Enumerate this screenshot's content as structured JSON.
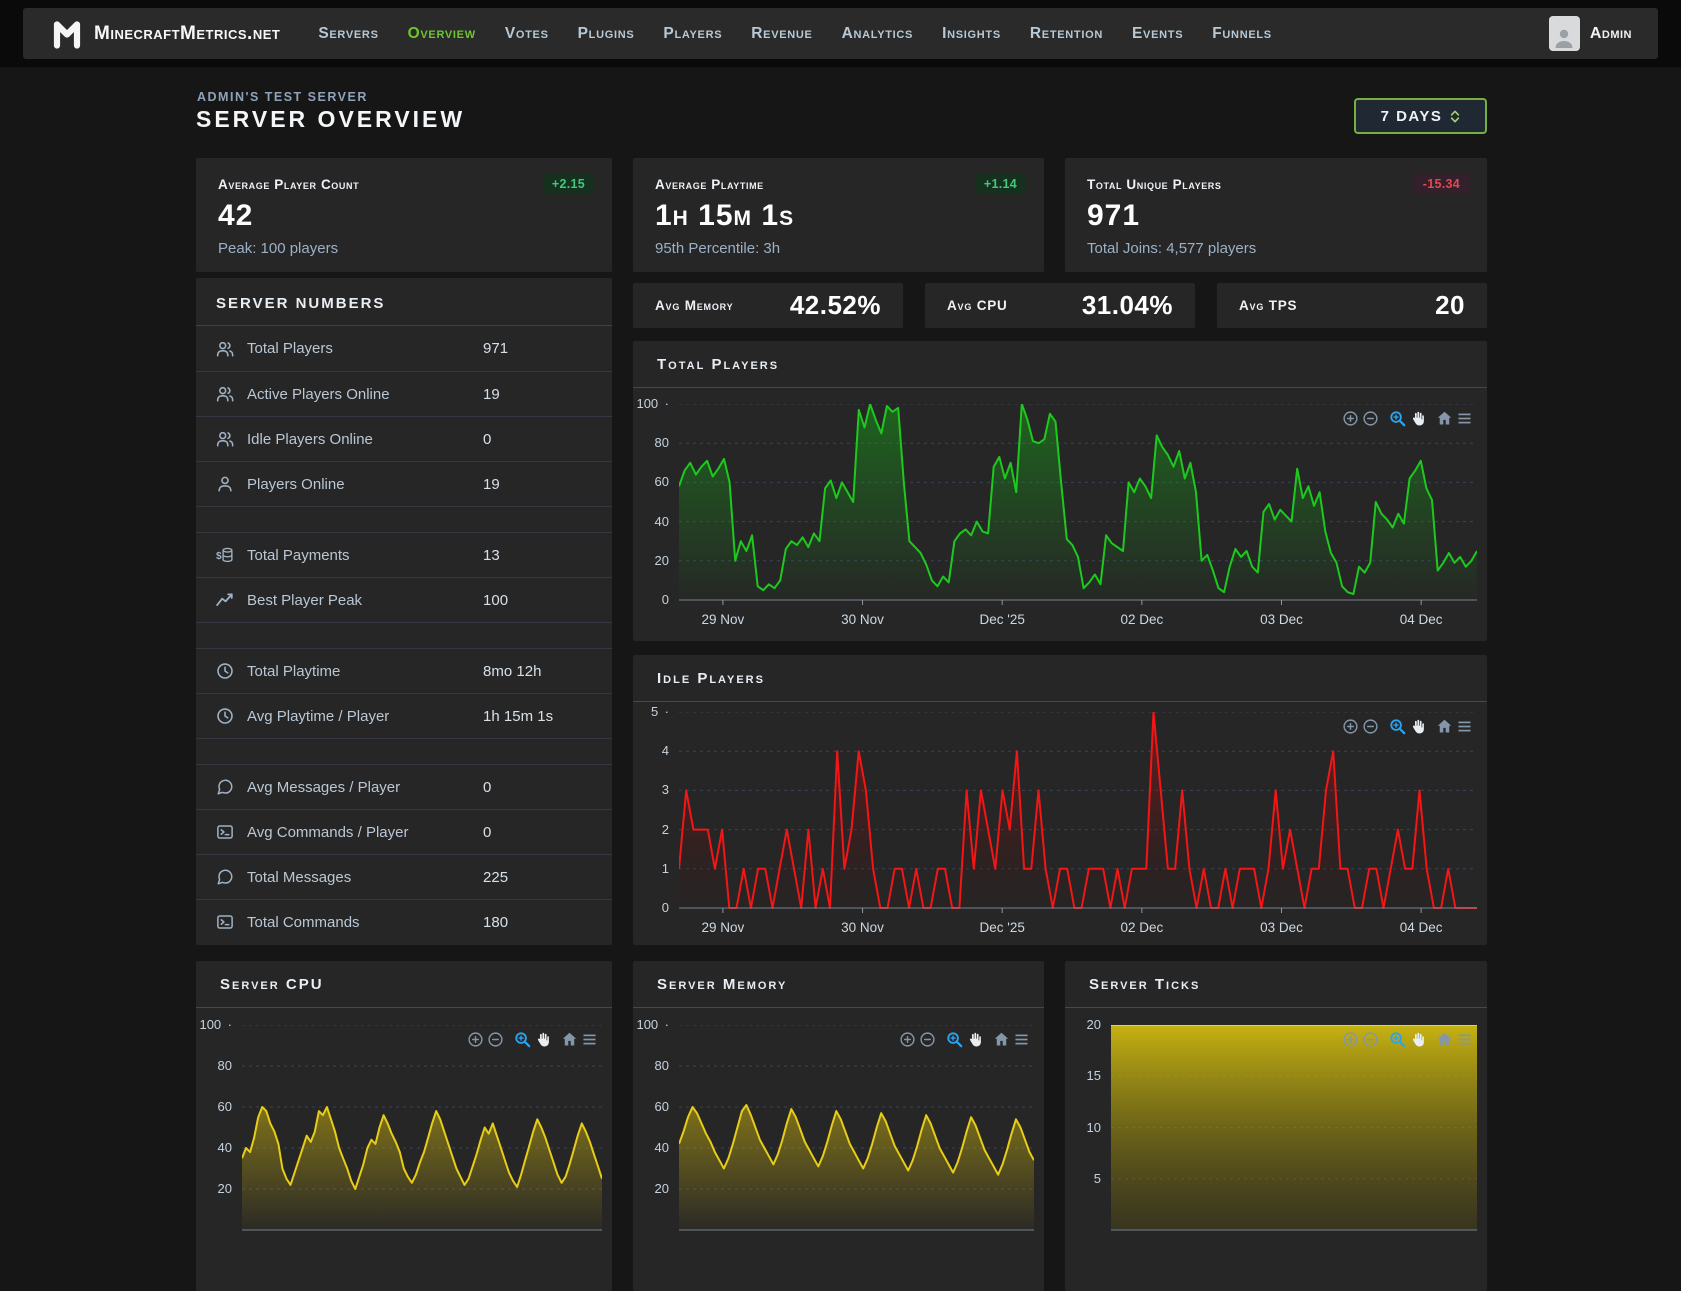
{
  "colors": {
    "positive": "#41c979",
    "negative": "#e5484d",
    "nav_active": "#6fc531",
    "selector_border": "#76b041",
    "modebar_active": "#2aa3f0"
  },
  "nav": {
    "brand": "MinecraftMetrics.net",
    "user": "Admin",
    "items": [
      {
        "label": "Servers",
        "active": false
      },
      {
        "label": "Overview",
        "active": true
      },
      {
        "label": "Votes",
        "active": false
      },
      {
        "label": "Plugins",
        "active": false
      },
      {
        "label": "Players",
        "active": false
      },
      {
        "label": "Revenue",
        "active": false
      },
      {
        "label": "Analytics",
        "active": false
      },
      {
        "label": "Insights",
        "active": false
      },
      {
        "label": "Retention",
        "active": false
      },
      {
        "label": "Events",
        "active": false
      },
      {
        "label": "Funnels",
        "active": false
      }
    ]
  },
  "header": {
    "server_label": "ADMIN'S TEST SERVER",
    "title": "SERVER OVERVIEW",
    "range_selector": "7 DAYS"
  },
  "stat_cards": [
    {
      "title": "Average Player Count",
      "value": "42",
      "delta": "+2.15",
      "delta_positive": true,
      "subtext": "Peak: 100 players"
    },
    {
      "title": "Average Playtime",
      "value": "1h 15m 1s",
      "delta": "+1.14",
      "delta_positive": true,
      "subtext": "95th Percentile: 3h"
    },
    {
      "title": "Total Unique Players",
      "value": "971",
      "delta": "-15.34",
      "delta_positive": false,
      "subtext": "Total Joins: 4,577 players"
    }
  ],
  "server_numbers": {
    "title": "SERVER NUMBERS",
    "rows": [
      {
        "icon": "users-icon",
        "label": "Total Players",
        "value": "971"
      },
      {
        "icon": "users-icon",
        "label": "Active Players Online",
        "value": "19"
      },
      {
        "icon": "users-icon",
        "label": "Idle Players Online",
        "value": "0"
      },
      {
        "icon": "user-icon",
        "label": "Players Online",
        "value": "19"
      },
      {
        "spacer": true
      },
      {
        "icon": "payments-icon",
        "label": "Total Payments",
        "value": "13"
      },
      {
        "icon": "trend-icon",
        "label": "Best Player Peak",
        "value": "100"
      },
      {
        "spacer": true
      },
      {
        "icon": "clock-icon",
        "label": "Total Playtime",
        "value": "8mo 12h"
      },
      {
        "icon": "clock-icon",
        "label": "Avg Playtime / Player",
        "value": "1h 15m 1s"
      },
      {
        "spacer": true
      },
      {
        "icon": "chat-icon",
        "label": "Avg Messages / Player",
        "value": "0"
      },
      {
        "icon": "terminal-icon",
        "label": "Avg Commands / Player",
        "value": "0"
      },
      {
        "icon": "chat-icon",
        "label": "Total Messages",
        "value": "225"
      },
      {
        "icon": "terminal-icon",
        "label": "Total Commands",
        "value": "180"
      }
    ]
  },
  "mini_stats": [
    {
      "label": "Avg Memory",
      "value": "42.52%"
    },
    {
      "label": "Avg CPU",
      "value": "31.04%"
    },
    {
      "label": "Avg TPS",
      "value": "20"
    }
  ],
  "modebar": {
    "icons": [
      "zoom-in-icon",
      "zoom-out-icon",
      "box-zoom-icon",
      "pan-icon",
      "home-icon",
      "menu-icon"
    ]
  },
  "chart_data": [
    {
      "id": "total-players",
      "title": "Total Players",
      "type": "area",
      "line_color": "#1ec91e",
      "fill_top": "rgba(25,150,25,0.55)",
      "fill_bottom": "rgba(25,150,25,0.02)",
      "ylim": [
        0,
        100
      ],
      "y_ticks": [
        100,
        80,
        60,
        40,
        20,
        0
      ],
      "top_dot": true,
      "grid": "dashed",
      "x_ticks": [
        "29 Nov",
        "30 Nov",
        "Dec '25",
        "02 Dec",
        "03 Dec",
        "04 Dec"
      ],
      "values": [
        58,
        66,
        70,
        64,
        68,
        71,
        63,
        67,
        72,
        60,
        20,
        30,
        25,
        33,
        7,
        5,
        8,
        6,
        10,
        26,
        30,
        28,
        32,
        27,
        34,
        30,
        57,
        61,
        52,
        60,
        55,
        50,
        97,
        88,
        100,
        92,
        85,
        99,
        96,
        98,
        60,
        30,
        27,
        24,
        18,
        10,
        7,
        12,
        9,
        30,
        34,
        36,
        33,
        40,
        35,
        34,
        68,
        73,
        62,
        70,
        55,
        100,
        92,
        81,
        80,
        82,
        95,
        91,
        60,
        31,
        28,
        22,
        6,
        9,
        13,
        8,
        33,
        29,
        27,
        25,
        60,
        55,
        62,
        58,
        52,
        84,
        78,
        74,
        68,
        76,
        62,
        70,
        55,
        20,
        23,
        15,
        6,
        4,
        17,
        26,
        22,
        25,
        17,
        14,
        45,
        49,
        41,
        46,
        43,
        40,
        67,
        52,
        58,
        48,
        55,
        35,
        24,
        19,
        7,
        4,
        3,
        17,
        14,
        19,
        50,
        44,
        41,
        37,
        44,
        39,
        62,
        66,
        71,
        57,
        51,
        15,
        19,
        24,
        19,
        22,
        17,
        20,
        25
      ]
    },
    {
      "id": "idle-players",
      "title": "Idle Players",
      "type": "area",
      "line_color": "#f31616",
      "fill_top": "rgba(200,20,20,0.5)",
      "fill_bottom": "rgba(60,5,5,0.05)",
      "ylim": [
        0,
        5
      ],
      "y_ticks": [
        5,
        4,
        3,
        2,
        1,
        0
      ],
      "top_dot": true,
      "grid": "dashed",
      "x_ticks": [
        "29 Nov",
        "30 Nov",
        "Dec '25",
        "02 Dec",
        "03 Dec",
        "04 Dec"
      ],
      "values": [
        1,
        3,
        2,
        2,
        2,
        1,
        2,
        0,
        0,
        1,
        0,
        1,
        1,
        0,
        1,
        2,
        1,
        0,
        2,
        0,
        1,
        0,
        4,
        1,
        2,
        4,
        3,
        1,
        0,
        0,
        1,
        1,
        0,
        1,
        0,
        0,
        1,
        1,
        0,
        0,
        3,
        1,
        3,
        2,
        1,
        3,
        2,
        4,
        1,
        1,
        3,
        1,
        0,
        1,
        1,
        0,
        0,
        1,
        1,
        1,
        0,
        1,
        0,
        1,
        1,
        1,
        5,
        3,
        1,
        1,
        3,
        1,
        0,
        1,
        0,
        0,
        1,
        0,
        1,
        1,
        1,
        0,
        1,
        3,
        1,
        2,
        1,
        0,
        1,
        1,
        3,
        4,
        1,
        1,
        0,
        0,
        1,
        1,
        0,
        1,
        2,
        1,
        1,
        3,
        1,
        0,
        0,
        1,
        0,
        0,
        0,
        0
      ]
    },
    {
      "id": "server-cpu",
      "title": "Server CPU",
      "type": "area",
      "line_color": "#e7cd17",
      "fill_top": "rgba(200,175,15,0.55)",
      "fill_bottom": "rgba(200,175,15,0.03)",
      "ylim": [
        0,
        100
      ],
      "y_ticks": [
        100,
        80,
        60,
        40,
        20
      ],
      "top_dot": true,
      "grid": "dashed",
      "values": [
        35,
        40,
        38,
        45,
        55,
        60,
        58,
        52,
        48,
        42,
        30,
        25,
        22,
        28,
        34,
        40,
        46,
        43,
        48,
        58,
        56,
        60,
        54,
        48,
        40,
        35,
        30,
        24,
        20,
        26,
        32,
        40,
        44,
        42,
        50,
        56,
        52,
        47,
        43,
        38,
        30,
        26,
        23,
        27,
        33,
        38,
        45,
        52,
        58,
        54,
        48,
        42,
        36,
        30,
        26,
        22,
        25,
        31,
        37,
        44,
        50,
        47,
        52,
        46,
        40,
        34,
        28,
        24,
        21,
        27,
        34,
        41,
        48,
        54,
        50,
        45,
        39,
        33,
        27,
        23,
        26,
        32,
        39,
        46,
        52,
        48,
        43,
        37,
        31,
        25
      ]
    },
    {
      "id": "server-memory",
      "title": "Server Memory",
      "type": "area",
      "line_color": "#e7cd17",
      "fill_top": "rgba(200,175,15,0.55)",
      "fill_bottom": "rgba(200,175,15,0.03)",
      "ylim": [
        0,
        100
      ],
      "y_ticks": [
        100,
        80,
        60,
        40,
        20
      ],
      "top_dot": true,
      "grid": "dashed",
      "values": [
        42,
        48,
        55,
        60,
        57,
        52,
        47,
        43,
        38,
        34,
        30,
        35,
        42,
        50,
        58,
        61,
        56,
        50,
        44,
        40,
        36,
        32,
        37,
        44,
        52,
        59,
        55,
        49,
        43,
        39,
        35,
        31,
        36,
        43,
        51,
        58,
        54,
        48,
        42,
        38,
        34,
        30,
        35,
        42,
        50,
        57,
        53,
        47,
        41,
        37,
        33,
        29,
        34,
        41,
        49,
        56,
        52,
        46,
        40,
        36,
        32,
        28,
        33,
        40,
        48,
        55,
        51,
        45,
        39,
        35,
        31,
        27,
        32,
        39,
        47,
        54,
        50,
        44,
        38,
        34
      ]
    },
    {
      "id": "server-ticks",
      "title": "Server Ticks",
      "type": "area",
      "line_color": "#ecd71a",
      "fill_top": "rgba(212,190,16,0.92)",
      "fill_bottom": "rgba(110,100,12,0.25)",
      "ylim": [
        0,
        20
      ],
      "y_ticks": [
        20,
        15,
        10,
        5
      ],
      "top_dot": false,
      "grid": "dashed",
      "values": [
        20,
        20,
        20,
        20,
        20,
        20,
        20,
        20,
        20,
        20,
        20,
        20
      ]
    }
  ]
}
